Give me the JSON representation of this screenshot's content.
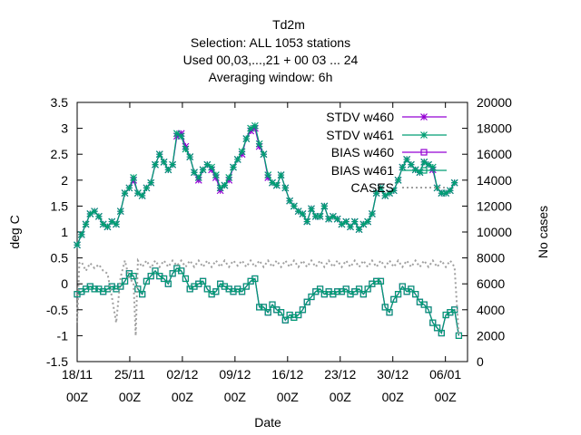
{
  "chart_data": {
    "type": "line",
    "title": [
      "Td2m",
      "Selection: ALL   1053 stations",
      "Used  00,03,...,21  + 00 03 ... 24",
      "Averaging window:  6h"
    ],
    "xlabel": "Date",
    "ylabel": "deg C",
    "y2label": "No cases",
    "xlim": [
      0,
      45
    ],
    "ylim": [
      -1.5,
      3.5
    ],
    "y2lim": [
      0,
      20000
    ],
    "xticks": [
      {
        "x": 0,
        "label": [
          "18/11",
          "00Z"
        ]
      },
      {
        "x": 7,
        "label": [
          "25/11",
          "00Z"
        ]
      },
      {
        "x": 14,
        "label": [
          "02/12",
          "00Z"
        ]
      },
      {
        "x": 21,
        "label": [
          "09/12",
          "00Z"
        ]
      },
      {
        "x": 28,
        "label": [
          "16/12",
          "00Z"
        ]
      },
      {
        "x": 35,
        "label": [
          "23/12",
          "00Z"
        ]
      },
      {
        "x": 42,
        "label": [
          "30/12",
          "00Z"
        ]
      },
      {
        "x": 49,
        "label": [
          "06/01",
          "00Z"
        ]
      }
    ],
    "yticks": [
      "-1.5",
      "-1",
      "-0.5",
      "0",
      "0.5",
      "1",
      "1.5",
      "2",
      "2.5",
      "3",
      "3.5"
    ],
    "y2ticks": [
      "0",
      "2000",
      "4000",
      "6000",
      "8000",
      "10000",
      "12000",
      "14000",
      "16000",
      "18000",
      "20000"
    ],
    "legend_position": "top-right",
    "series": [
      {
        "name": "STDV w460",
        "color": "#9400d3",
        "marker": "star",
        "axis": "y1",
        "x": [
          0,
          0.5,
          1,
          1.5,
          2,
          2.5,
          3,
          3.5,
          4,
          4.5,
          5,
          5.5,
          6,
          6.5,
          7,
          7.5,
          8,
          8.5,
          9,
          9.5,
          10,
          10.5,
          11,
          11.5,
          12,
          12.5,
          13,
          13.5,
          14,
          14.5,
          15,
          15.5,
          16,
          16.5,
          17,
          17.5,
          18,
          18.5,
          19,
          19.5,
          20,
          20.5,
          21,
          21.5,
          22,
          22.5,
          23,
          23.5,
          24,
          24.5,
          25,
          25.5,
          26,
          26.5,
          27,
          27.5,
          28,
          28.5,
          29,
          29.5,
          30,
          30.5,
          31,
          31.5,
          32,
          32.5,
          33,
          33.5,
          34,
          34.5,
          35,
          35.5,
          36,
          36.5,
          37,
          37.5,
          38,
          38.5,
          39,
          39.5,
          40,
          40.5,
          41,
          41.5,
          42,
          42.5,
          43,
          43.5,
          44
        ],
        "y": [
          0.75,
          0.95,
          1.15,
          1.35,
          1.4,
          1.3,
          1.15,
          1.1,
          1.2,
          1.15,
          1.4,
          1.75,
          1.85,
          2.0,
          1.75,
          1.7,
          1.85,
          1.95,
          2.3,
          2.5,
          2.35,
          2.2,
          2.3,
          2.85,
          2.9,
          2.65,
          2.45,
          2.15,
          2.0,
          2.2,
          2.3,
          2.2,
          2.05,
          1.8,
          1.9,
          2.0,
          2.25,
          2.4,
          2.5,
          2.8,
          2.95,
          3.0,
          2.65,
          2.5,
          2.05,
          1.95,
          1.9,
          2.1,
          1.85,
          1.6,
          1.5,
          1.4,
          1.35,
          1.2,
          1.45,
          1.3,
          1.3,
          1.5,
          1.25,
          1.3,
          1.25,
          1.15,
          1.2,
          1.1,
          1.2,
          1.05,
          1.15,
          1.2,
          1.35,
          1.75,
          1.85,
          1.7,
          1.75,
          1.8,
          2.0,
          2.25,
          2.4,
          2.3,
          2.2,
          2.15,
          2.35,
          2.3,
          2.2,
          1.85,
          1.75,
          1.75,
          1.8,
          1.95,
          null
        ]
      },
      {
        "name": "STDV w461",
        "color": "#009e73",
        "marker": "star",
        "axis": "y1",
        "x": [
          0,
          0.5,
          1,
          1.5,
          2,
          2.5,
          3,
          3.5,
          4,
          4.5,
          5,
          5.5,
          6,
          6.5,
          7,
          7.5,
          8,
          8.5,
          9,
          9.5,
          10,
          10.5,
          11,
          11.5,
          12,
          12.5,
          13,
          13.5,
          14,
          14.5,
          15,
          15.5,
          16,
          16.5,
          17,
          17.5,
          18,
          18.5,
          19,
          19.5,
          20,
          20.5,
          21,
          21.5,
          22,
          22.5,
          23,
          23.5,
          24,
          24.5,
          25,
          25.5,
          26,
          26.5,
          27,
          27.5,
          28,
          28.5,
          29,
          29.5,
          30,
          30.5,
          31,
          31.5,
          32,
          32.5,
          33,
          33.5,
          34,
          34.5,
          35,
          35.5,
          36,
          36.5,
          37,
          37.5,
          38,
          38.5,
          39,
          39.5,
          40,
          40.5,
          41,
          41.5,
          42,
          42.5,
          43,
          43.5,
          44
        ],
        "y": [
          0.75,
          0.95,
          1.15,
          1.35,
          1.4,
          1.3,
          1.15,
          1.1,
          1.2,
          1.15,
          1.4,
          1.75,
          1.85,
          2.05,
          1.75,
          1.7,
          1.85,
          1.95,
          2.3,
          2.5,
          2.35,
          2.2,
          2.3,
          2.9,
          2.85,
          2.6,
          2.45,
          2.15,
          2.05,
          2.2,
          2.3,
          2.25,
          2.1,
          1.85,
          1.9,
          2.05,
          2.25,
          2.4,
          2.55,
          2.8,
          3.0,
          3.05,
          2.7,
          2.5,
          2.1,
          1.95,
          1.9,
          2.1,
          1.85,
          1.6,
          1.5,
          1.4,
          1.35,
          1.2,
          1.45,
          1.3,
          1.3,
          1.5,
          1.25,
          1.3,
          1.25,
          1.15,
          1.2,
          1.1,
          1.2,
          1.05,
          1.15,
          1.2,
          1.35,
          1.75,
          1.85,
          1.7,
          1.75,
          1.8,
          2.0,
          2.25,
          2.4,
          2.3,
          2.2,
          2.15,
          2.35,
          2.3,
          2.25,
          1.85,
          1.75,
          1.75,
          1.8,
          1.95,
          null
        ]
      },
      {
        "name": "BIAS w460",
        "color": "#9400d3",
        "marker": "square",
        "axis": "y1",
        "x": [
          0,
          0.5,
          1,
          1.5,
          2,
          2.5,
          3,
          3.5,
          4,
          4.5,
          5,
          5.5,
          6,
          6.5,
          7,
          7.5,
          8,
          8.5,
          9,
          9.5,
          10,
          10.5,
          11,
          11.5,
          12,
          12.5,
          13,
          13.5,
          14,
          14.5,
          15,
          15.5,
          16,
          16.5,
          17,
          17.5,
          18,
          18.5,
          19,
          19.5,
          20,
          20.5,
          21,
          21.5,
          22,
          22.5,
          23,
          23.5,
          24,
          24.5,
          25,
          25.5,
          26,
          26.5,
          27,
          27.5,
          28,
          28.5,
          29,
          29.5,
          30,
          30.5,
          31,
          31.5,
          32,
          32.5,
          33,
          33.5,
          34,
          34.5,
          35,
          35.5,
          36,
          36.5,
          37,
          37.5,
          38,
          38.5,
          39,
          39.5,
          40,
          40.5,
          41,
          41.5,
          42,
          42.5,
          43,
          43.5,
          44
        ],
        "y": [
          -0.2,
          -0.15,
          -0.1,
          -0.05,
          -0.1,
          -0.1,
          -0.15,
          -0.1,
          -0.05,
          -0.1,
          -0.05,
          0.05,
          0.2,
          0.15,
          -0.1,
          -0.2,
          0.05,
          0.15,
          0.25,
          0.15,
          0.1,
          0.0,
          0.2,
          0.3,
          0.25,
          0.1,
          -0.1,
          -0.05,
          0.0,
          0.05,
          -0.1,
          -0.2,
          -0.15,
          0.0,
          -0.05,
          -0.1,
          -0.15,
          -0.1,
          -0.15,
          -0.05,
          0.05,
          0.1,
          -0.45,
          -0.45,
          -0.55,
          -0.4,
          -0.5,
          -0.55,
          -0.7,
          -0.6,
          -0.65,
          -0.6,
          -0.5,
          -0.35,
          -0.25,
          -0.15,
          -0.1,
          -0.2,
          -0.15,
          -0.2,
          -0.15,
          -0.15,
          -0.1,
          -0.2,
          -0.15,
          -0.1,
          -0.2,
          -0.1,
          0.0,
          0.05,
          0.05,
          -0.45,
          -0.55,
          -0.3,
          -0.2,
          -0.05,
          -0.15,
          -0.1,
          -0.2,
          -0.35,
          -0.4,
          -0.5,
          -0.75,
          -0.85,
          -0.95,
          -0.6,
          -0.55,
          -0.5,
          -1.0
        ]
      },
      {
        "name": "BIAS w461",
        "color": "#009e73",
        "marker": "square",
        "axis": "y1",
        "x": [
          0,
          0.5,
          1,
          1.5,
          2,
          2.5,
          3,
          3.5,
          4,
          4.5,
          5,
          5.5,
          6,
          6.5,
          7,
          7.5,
          8,
          8.5,
          9,
          9.5,
          10,
          10.5,
          11,
          11.5,
          12,
          12.5,
          13,
          13.5,
          14,
          14.5,
          15,
          15.5,
          16,
          16.5,
          17,
          17.5,
          18,
          18.5,
          19,
          19.5,
          20,
          20.5,
          21,
          21.5,
          22,
          22.5,
          23,
          23.5,
          24,
          24.5,
          25,
          25.5,
          26,
          26.5,
          27,
          27.5,
          28,
          28.5,
          29,
          29.5,
          30,
          30.5,
          31,
          31.5,
          32,
          32.5,
          33,
          33.5,
          34,
          34.5,
          35,
          35.5,
          36,
          36.5,
          37,
          37.5,
          38,
          38.5,
          39,
          39.5,
          40,
          40.5,
          41,
          41.5,
          42,
          42.5,
          43,
          43.5,
          44
        ],
        "y": [
          -0.2,
          -0.15,
          -0.1,
          -0.05,
          -0.1,
          -0.1,
          -0.15,
          -0.1,
          -0.05,
          -0.1,
          -0.05,
          0.05,
          0.2,
          0.15,
          -0.1,
          -0.2,
          0.05,
          0.15,
          0.25,
          0.15,
          0.1,
          0.0,
          0.2,
          0.3,
          0.25,
          0.1,
          -0.1,
          -0.05,
          0.0,
          0.05,
          -0.1,
          -0.2,
          -0.15,
          0.0,
          -0.05,
          -0.1,
          -0.15,
          -0.1,
          -0.15,
          -0.05,
          0.05,
          0.1,
          -0.45,
          -0.45,
          -0.55,
          -0.4,
          -0.5,
          -0.55,
          -0.7,
          -0.6,
          -0.65,
          -0.6,
          -0.5,
          -0.35,
          -0.25,
          -0.15,
          -0.1,
          -0.2,
          -0.15,
          -0.2,
          -0.15,
          -0.15,
          -0.1,
          -0.2,
          -0.15,
          -0.1,
          -0.2,
          -0.1,
          0.0,
          0.05,
          0.05,
          -0.45,
          -0.55,
          -0.3,
          -0.2,
          -0.05,
          -0.15,
          -0.1,
          -0.2,
          -0.35,
          -0.4,
          -0.5,
          -0.75,
          -0.85,
          -0.95,
          -0.6,
          -0.55,
          -0.5,
          -1.0
        ]
      },
      {
        "name": "CASES",
        "color": "#a0a0a0",
        "marker": "none",
        "dash": true,
        "axis": "y2",
        "x": [
          0,
          0.25,
          0.5,
          1,
          1.5,
          2,
          2.5,
          3,
          3.5,
          4,
          4.5,
          5,
          5.5,
          6,
          6.5,
          6.75,
          7,
          7.5,
          8,
          8.5,
          9,
          9.5,
          10,
          10.5,
          11,
          11.5,
          12,
          12.5,
          13,
          13.5,
          14,
          14.5,
          15,
          15.5,
          16,
          16.5,
          17,
          17.5,
          18,
          18.5,
          19,
          19.5,
          20,
          20.5,
          21,
          21.5,
          22,
          22.5,
          23,
          23.5,
          24,
          24.5,
          25,
          25.5,
          26,
          26.5,
          27,
          27.5,
          28,
          28.5,
          29,
          29.5,
          30,
          30.5,
          31,
          31.5,
          32,
          32.5,
          33,
          33.5,
          34,
          34.5,
          35,
          35.5,
          36,
          36.5,
          37,
          37.5,
          38,
          38.5,
          39,
          39.5,
          40,
          40.5,
          41,
          41.5,
          42,
          42.5,
          43,
          43.5,
          44
        ],
        "y": [
          3000,
          7600,
          7700,
          7000,
          7600,
          7200,
          7500,
          7000,
          6800,
          5000,
          3000,
          6500,
          7800,
          6400,
          6100,
          2000,
          7800,
          7300,
          7800,
          7200,
          7800,
          7300,
          7800,
          7300,
          7800,
          7400,
          7800,
          7300,
          7800,
          7300,
          7800,
          7300,
          7800,
          7300,
          7800,
          7300,
          7800,
          7300,
          7800,
          7400,
          7800,
          7300,
          7800,
          7300,
          7800,
          7300,
          7800,
          7300,
          7800,
          7300,
          7800,
          7300,
          7800,
          7300,
          7800,
          7300,
          7800,
          7300,
          7800,
          7300,
          7800,
          7300,
          7800,
          7300,
          7800,
          7300,
          7800,
          7300,
          7800,
          7300,
          7800,
          7300,
          7800,
          7300,
          7800,
          7300,
          7800,
          7300,
          7800,
          7300,
          7800,
          7300,
          7800,
          7300,
          7800,
          7300,
          7800,
          7300,
          7800,
          7300,
          2000
        ]
      }
    ]
  }
}
